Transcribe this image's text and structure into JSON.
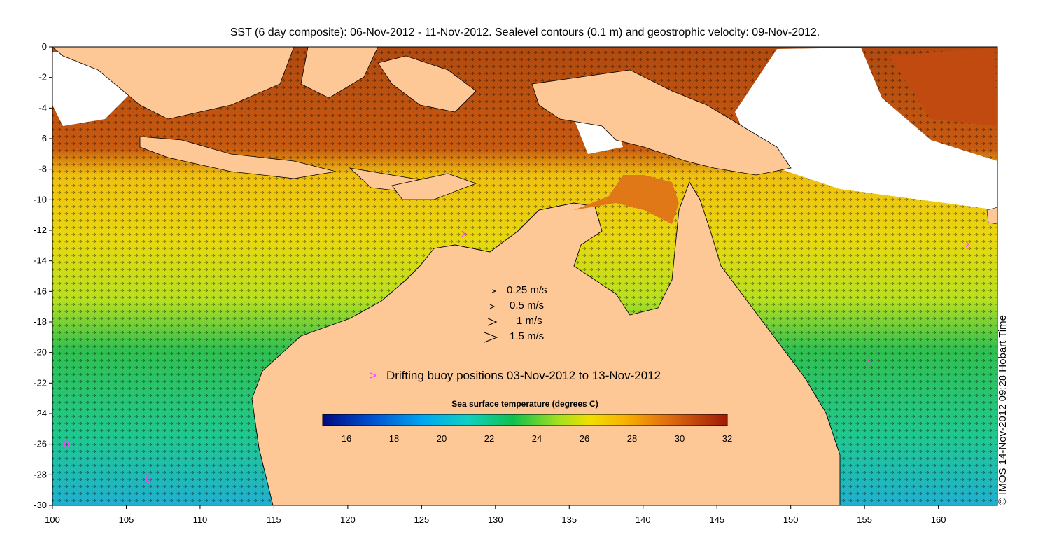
{
  "title": "SST (6 day composite): 06-Nov-2012 - 11-Nov-2012. Sealevel contours (0.1 m) and geostrophic velocity: 09-Nov-2012.",
  "copyright": "© IMOS 14-Nov-2012 09:28 Hobart Time",
  "axes": {
    "x_ticks": [
      "100",
      "105",
      "110",
      "115",
      "120",
      "125",
      "130",
      "135",
      "140",
      "145",
      "150",
      "155",
      "160"
    ],
    "y_ticks": [
      "0",
      "-2",
      "-4",
      "-6",
      "-8",
      "-10",
      "-12",
      "-14",
      "-16",
      "-18",
      "-20",
      "-22",
      "-24",
      "-26",
      "-28",
      "-30"
    ],
    "lon_range": [
      100,
      164
    ],
    "lat_range": [
      -30,
      0
    ]
  },
  "velocity_legend": [
    {
      "label": "0.25 m/s",
      "speed": 0.25
    },
    {
      "label": "0.5 m/s",
      "speed": 0.5
    },
    {
      "label": "1 m/s",
      "speed": 1
    },
    {
      "label": "1.5 m/s",
      "speed": 1.5
    }
  ],
  "buoy_legend": {
    "marker": ">",
    "label": "Drifting buoy positions 03-Nov-2012 to 13-Nov-2012"
  },
  "colorbar": {
    "title": "Sea surface temperature (degrees C)",
    "ticks": [
      "16",
      "18",
      "20",
      "22",
      "24",
      "26",
      "28",
      "30",
      "32"
    ],
    "range": [
      15,
      32
    ]
  },
  "colors": {
    "land": "#fdc896",
    "buoy": "#ff3cff"
  }
}
